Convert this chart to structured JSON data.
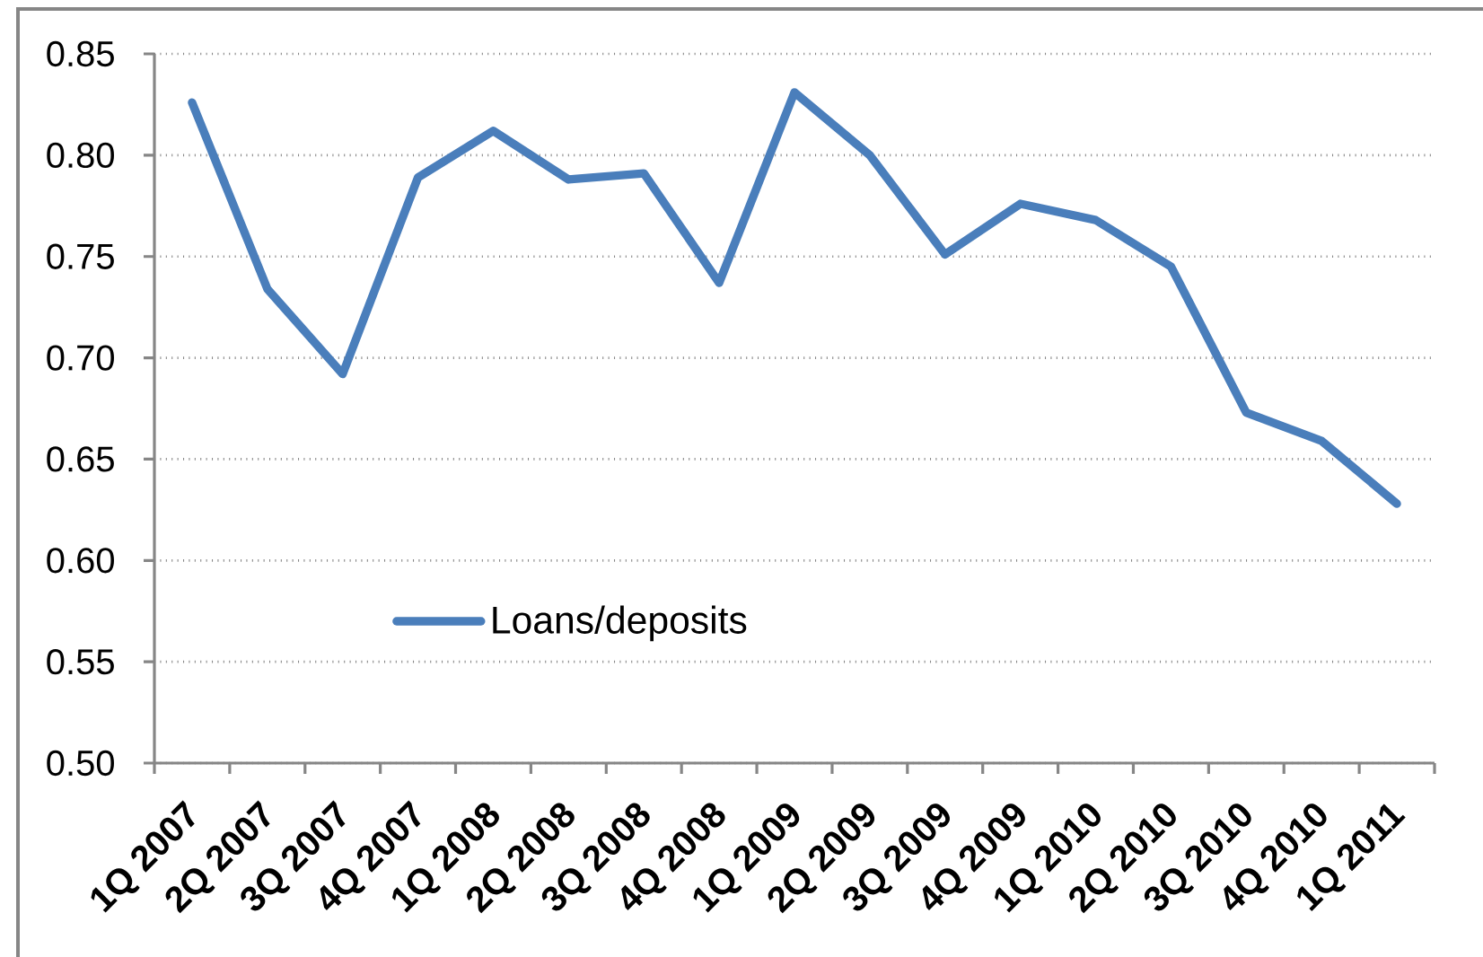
{
  "chart_data": {
    "type": "line",
    "categories": [
      "1Q 2007",
      "2Q 2007",
      "3Q 2007",
      "4Q 2007",
      "1Q 2008",
      "2Q 2008",
      "3Q 2008",
      "4Q 2008",
      "1Q 2009",
      "2Q 2009",
      "3Q 2009",
      "4Q 2009",
      "1Q 2010",
      "2Q 2010",
      "3Q 2010",
      "4Q 2010",
      "1Q 2011"
    ],
    "series": [
      {
        "name": "Loans/deposits",
        "color": "#4a7ebb",
        "values": [
          0.826,
          0.734,
          0.692,
          0.789,
          0.812,
          0.788,
          0.791,
          0.737,
          0.831,
          0.8,
          0.751,
          0.776,
          0.768,
          0.745,
          0.673,
          0.659,
          0.628
        ]
      }
    ],
    "ylim": [
      0.5,
      0.85
    ],
    "yticks": [
      {
        "value": 0.5,
        "label": "0.50"
      },
      0.55,
      {
        "value": 0.6,
        "label": "0.60"
      },
      0.65,
      {
        "value": 0.7,
        "label": "0.70"
      },
      0.75,
      {
        "value": 0.8,
        "label": "0.80"
      },
      0.85
    ],
    "grid": "y",
    "legend": "bottom left",
    "line_style": "solid"
  }
}
